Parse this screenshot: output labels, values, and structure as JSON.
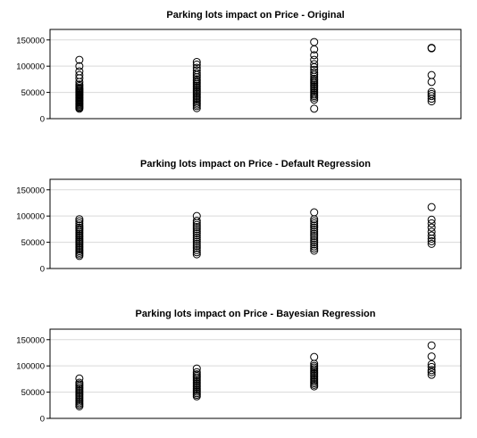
{
  "chart_data": [
    {
      "type": "scatter",
      "title": "Parking lots impact on Price - Original",
      "xlabel": "",
      "ylabel": "",
      "xlim": [
        -0.25,
        3.25
      ],
      "ylim": [
        0,
        170000
      ],
      "yticks": [
        0,
        50000,
        100000,
        150000
      ],
      "ytick_labels": [
        "0",
        "50000",
        "100000",
        "150000"
      ],
      "grid": true,
      "series": [
        {
          "x": 0,
          "values": [
            19000,
            21000,
            23000,
            25000,
            27000,
            29000,
            31000,
            33000,
            35000,
            37000,
            39000,
            41000,
            43000,
            45000,
            47000,
            49000,
            51000,
            53000,
            55000,
            57000,
            59000,
            62000,
            65000,
            70000,
            77000,
            83000,
            90000,
            100000,
            112000
          ]
        },
        {
          "x": 1,
          "values": [
            20000,
            24000,
            27000,
            30000,
            33000,
            36000,
            39000,
            42000,
            45000,
            48000,
            51000,
            54000,
            57000,
            60000,
            63000,
            66000,
            69000,
            72000,
            75000,
            79000,
            83000,
            87000,
            92000,
            97000,
            103000,
            108000
          ]
        },
        {
          "x": 2,
          "values": [
            19000,
            36000,
            40000,
            43000,
            46000,
            49000,
            52000,
            55000,
            58000,
            61000,
            64000,
            67000,
            70000,
            73000,
            76000,
            80000,
            84000,
            88000,
            93000,
            98000,
            104000,
            112000,
            121000,
            132000,
            146000
          ]
        },
        {
          "x": 3,
          "values": [
            33000,
            38000,
            43000,
            47000,
            51000,
            70000,
            83000,
            134000,
            135000
          ]
        }
      ]
    },
    {
      "type": "scatter",
      "title": "Parking lots impact on Price - Default Regression",
      "xlabel": "",
      "ylabel": "",
      "xlim": [
        -0.25,
        3.25
      ],
      "ylim": [
        0,
        170000
      ],
      "yticks": [
        0,
        50000,
        100000,
        150000
      ],
      "ytick_labels": [
        "0",
        "50000",
        "100000",
        "150000"
      ],
      "grid": true,
      "series": [
        {
          "x": 0,
          "values": [
            24000,
            27000,
            30000,
            33000,
            36000,
            39000,
            42000,
            45000,
            48000,
            51000,
            54000,
            57000,
            60000,
            63000,
            66000,
            69000,
            72000,
            75000,
            78000,
            82000,
            86000,
            90000,
            94000
          ]
        },
        {
          "x": 1,
          "values": [
            27000,
            31000,
            35000,
            39000,
            43000,
            47000,
            51000,
            55000,
            59000,
            63000,
            67000,
            71000,
            75000,
            79000,
            83000,
            87000,
            91000,
            100000
          ]
        },
        {
          "x": 2,
          "values": [
            34000,
            38000,
            42000,
            46000,
            50000,
            54000,
            58000,
            62000,
            66000,
            70000,
            74000,
            78000,
            82000,
            86000,
            90000,
            94000,
            107000
          ]
        },
        {
          "x": 3,
          "values": [
            47000,
            52000,
            57000,
            63000,
            70000,
            78000,
            86000,
            93000,
            117000
          ]
        }
      ]
    },
    {
      "type": "scatter",
      "title": "Parking lots impact on Price - Bayesian Regression",
      "xlabel": "",
      "ylabel": "",
      "xlim": [
        -0.25,
        3.25
      ],
      "ylim": [
        0,
        170000
      ],
      "yticks": [
        0,
        50000,
        100000,
        150000
      ],
      "ytick_labels": [
        "0",
        "50000",
        "100000",
        "150000"
      ],
      "grid": true,
      "series": [
        {
          "x": 0,
          "values": [
            23000,
            26000,
            29000,
            32000,
            35000,
            38000,
            41000,
            44000,
            47000,
            50000,
            53000,
            56000,
            59000,
            62000,
            65000,
            68000,
            76000
          ]
        },
        {
          "x": 1,
          "values": [
            42000,
            45000,
            48000,
            51000,
            54000,
            57000,
            60000,
            63000,
            66000,
            69000,
            72000,
            75000,
            78000,
            81000,
            84000,
            88000,
            95000
          ]
        },
        {
          "x": 2,
          "values": [
            61000,
            64000,
            67000,
            70000,
            73000,
            76000,
            79000,
            82000,
            85000,
            88000,
            91000,
            94000,
            97000,
            100000,
            104000,
            117000
          ]
        },
        {
          "x": 3,
          "values": [
            83000,
            88000,
            92000,
            98000,
            103000,
            118000,
            139000
          ]
        }
      ]
    }
  ]
}
